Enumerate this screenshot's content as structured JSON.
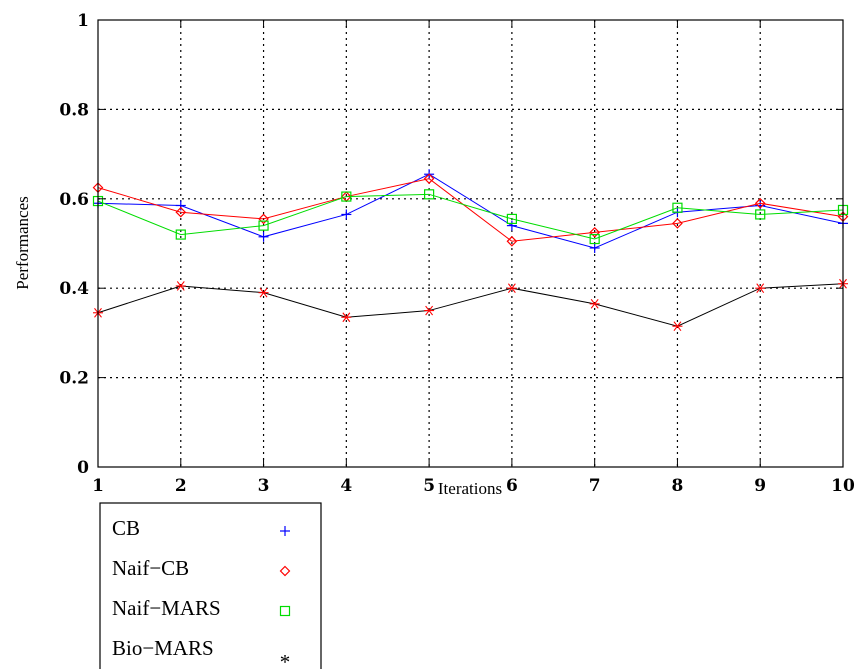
{
  "chart_data": {
    "type": "line",
    "title": "",
    "xlabel": "Iterations",
    "ylabel": "Performances",
    "x": [
      1,
      2,
      3,
      4,
      5,
      6,
      7,
      8,
      9,
      10
    ],
    "xlim": [
      1,
      10
    ],
    "ylim": [
      0,
      1
    ],
    "x_ticks": [
      "1",
      "2",
      "3",
      "4",
      "5",
      "6",
      "7",
      "8",
      "9",
      "10"
    ],
    "y_ticks": [
      "0",
      "0.2",
      "0.4",
      "0.6",
      "0.8",
      "1"
    ],
    "grid": true,
    "legend_position": "bottom-left",
    "series": [
      {
        "name": "CB",
        "marker": "+",
        "color": "#0000ff",
        "values": [
          0.59,
          0.585,
          0.515,
          0.565,
          0.655,
          0.54,
          0.49,
          0.57,
          0.585,
          0.545
        ]
      },
      {
        "name": "Naif−CB",
        "marker": "◇",
        "color": "#ff0000",
        "values": [
          0.625,
          0.57,
          0.555,
          0.605,
          0.645,
          0.505,
          0.525,
          0.545,
          0.59,
          0.56
        ]
      },
      {
        "name": "Naif−MARS",
        "marker": "□",
        "color": "#00dd00",
        "values": [
          0.595,
          0.52,
          0.54,
          0.605,
          0.61,
          0.555,
          0.51,
          0.58,
          0.565,
          0.575
        ]
      },
      {
        "name": "Bio−MARS",
        "marker": "*",
        "color": "#000000",
        "values": [
          0.345,
          0.405,
          0.39,
          0.335,
          0.35,
          0.4,
          0.365,
          0.315,
          0.4,
          0.41
        ]
      }
    ]
  }
}
